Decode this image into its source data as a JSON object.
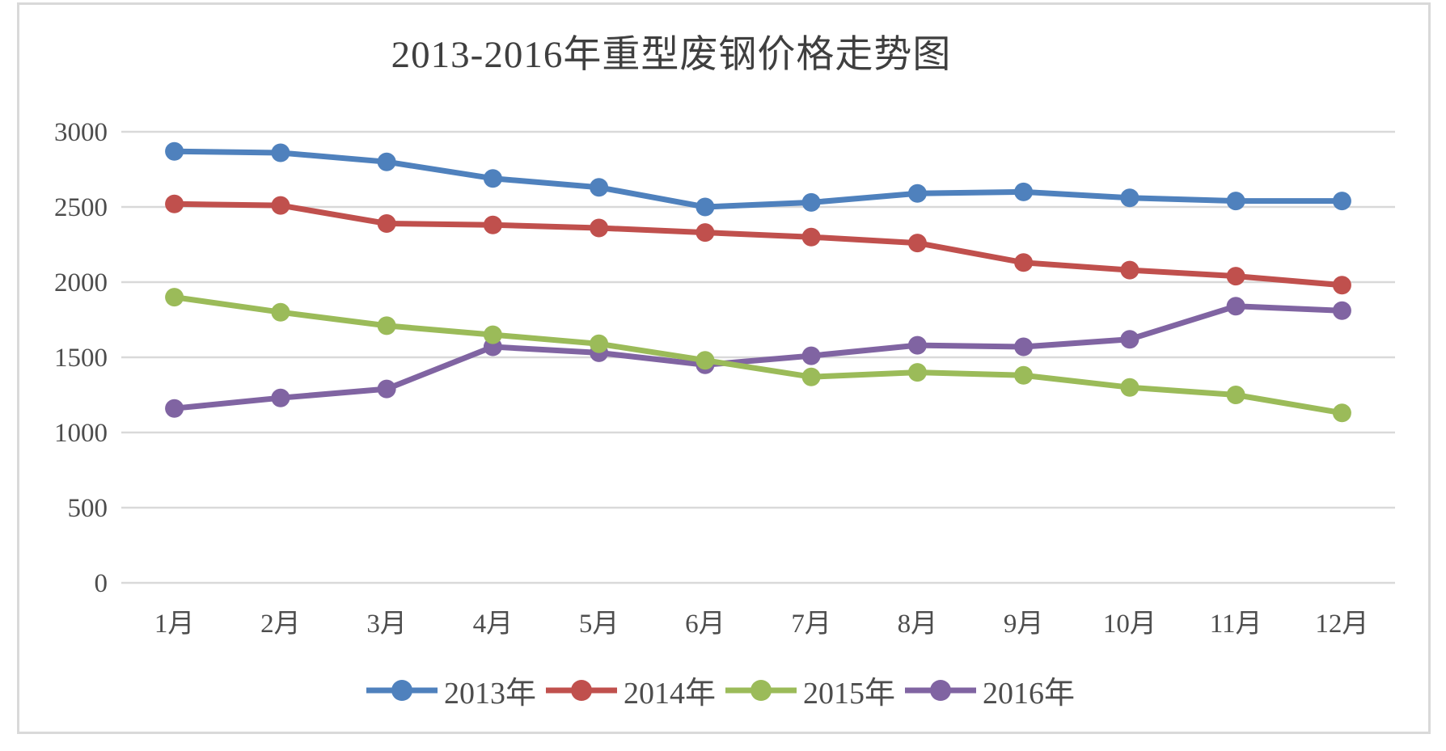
{
  "chart_data": {
    "type": "line",
    "title": "2013-2016年重型废钢价格走势图",
    "categories": [
      "1月",
      "2月",
      "3月",
      "4月",
      "5月",
      "6月",
      "7月",
      "8月",
      "9月",
      "10月",
      "11月",
      "12月"
    ],
    "series": [
      {
        "name": "2013年",
        "color": "#4F81BD",
        "values": [
          2870,
          2860,
          2800,
          2690,
          2630,
          2500,
          2530,
          2590,
          2600,
          2560,
          2540,
          2540
        ]
      },
      {
        "name": "2014年",
        "color": "#C0504D",
        "values": [
          2520,
          2510,
          2390,
          2380,
          2360,
          2330,
          2300,
          2260,
          2130,
          2080,
          2040,
          1980
        ]
      },
      {
        "name": "2015年",
        "color": "#9BBB59",
        "values": [
          1900,
          1800,
          1710,
          1650,
          1590,
          1480,
          1370,
          1400,
          1380,
          1300,
          1250,
          1130
        ]
      },
      {
        "name": "2016年",
        "color": "#8064A2",
        "values": [
          1160,
          1230,
          1290,
          1570,
          1530,
          1450,
          1510,
          1580,
          1570,
          1620,
          1840,
          1810
        ]
      }
    ],
    "ylim": [
      0,
      3000
    ],
    "ytick_interval": 500,
    "ytick_labels": [
      "3000",
      "2500",
      "2000",
      "1500",
      "1000",
      "500",
      "0"
    ],
    "xlabel": "",
    "ylabel": "",
    "grid": true,
    "legend_position": "bottom",
    "colors": {
      "gridline": "#D9D9D9",
      "frame_border": "#D9D9D9",
      "axis_text": "#4D4D4D",
      "title_text": "#3F3F3F",
      "background": "#FFFFFF"
    }
  }
}
